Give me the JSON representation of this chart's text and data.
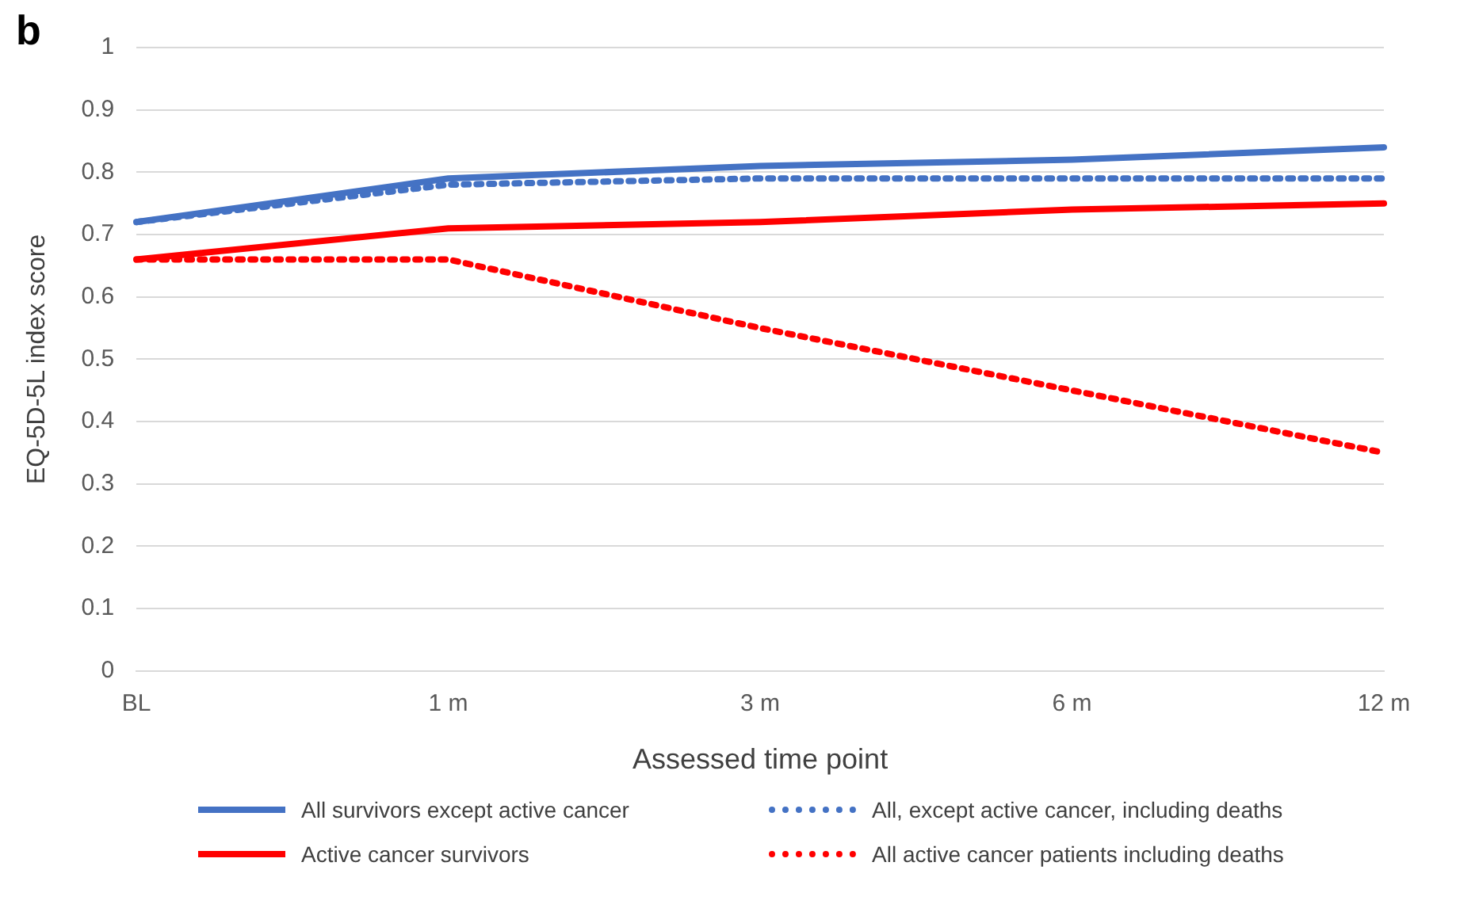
{
  "chart_data": {
    "type": "line",
    "title": "b",
    "xlabel": "Assessed time point",
    "ylabel": "EQ-5D-5L index score",
    "categories": [
      "BL",
      "1 m",
      "3 m",
      "6 m",
      "12 m"
    ],
    "ylim": [
      0,
      1
    ],
    "yticks": [
      0,
      0.1,
      0.2,
      0.3,
      0.4,
      0.5,
      0.6,
      0.7,
      0.8,
      0.9,
      1
    ],
    "grid": "y",
    "legend": "bottom",
    "marker": "none",
    "series": [
      {
        "name": "All survivors except active cancer",
        "color": "#4472c4",
        "line_style": "solid",
        "values": [
          0.72,
          0.79,
          0.81,
          0.82,
          0.84
        ]
      },
      {
        "name": "All, except active cancer, including deaths",
        "color": "#4472c4",
        "line_style": "dotted",
        "values": [
          0.72,
          0.78,
          0.79,
          0.79,
          0.79
        ]
      },
      {
        "name": "Active cancer survivors",
        "color": "#ff0000",
        "line_style": "solid",
        "values": [
          0.66,
          0.71,
          0.72,
          0.74,
          0.75
        ]
      },
      {
        "name": "All active cancer patients including deaths",
        "color": "#ff0000",
        "line_style": "dotted",
        "values": [
          0.66,
          0.66,
          0.55,
          0.45,
          0.35
        ]
      }
    ]
  }
}
